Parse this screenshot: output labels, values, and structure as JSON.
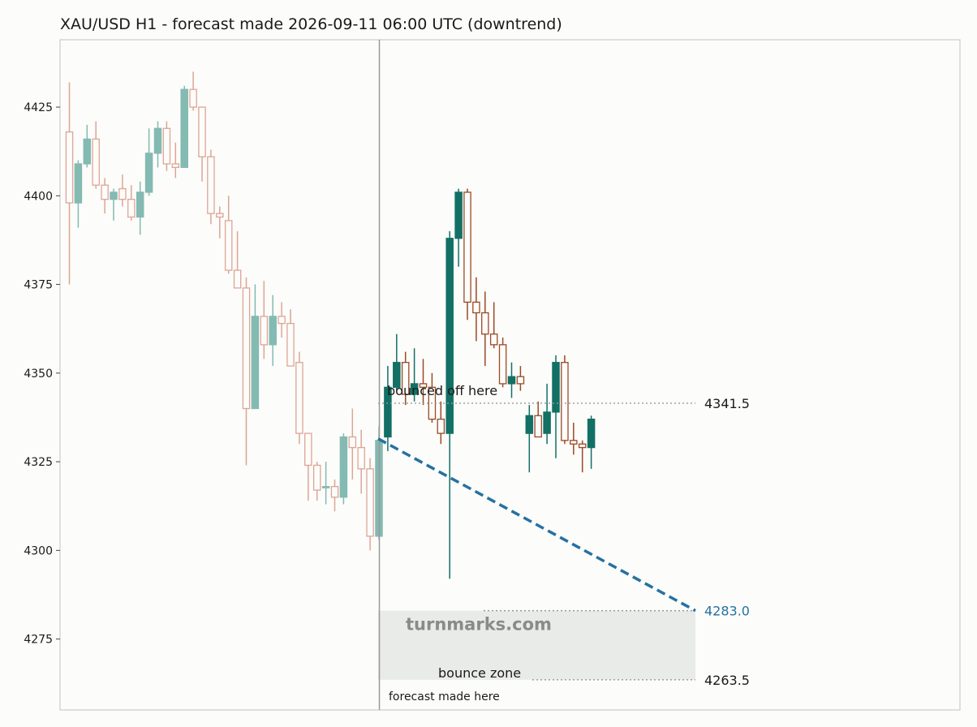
{
  "chart_data": {
    "type": "candlestick",
    "title": "XAU/USD H1 - forecast made 2026-09-11 06:00 UTC (downtrend)",
    "xlabel": "",
    "ylabel": "",
    "ylim": [
      4255,
      4444
    ],
    "yticks": [
      4275,
      4300,
      4325,
      4350,
      4375,
      4400,
      4425
    ],
    "grid": false,
    "colors": {
      "up": "#127065",
      "down": "#9a4a26",
      "history_up": "#83bab2",
      "history_down": "#dda596",
      "forecast_line": "#2471a3",
      "zone_fill": "#e9ebe8",
      "level_line": "#999999",
      "divider": "#999999"
    },
    "history": [
      {
        "o": 4418,
        "h": 4432,
        "l": 4375,
        "c": 4398
      },
      {
        "o": 4398,
        "h": 4410,
        "l": 4391,
        "c": 4409
      },
      {
        "o": 4409,
        "h": 4420,
        "l": 4408,
        "c": 4416
      },
      {
        "o": 4416,
        "h": 4421,
        "l": 4402,
        "c": 4403
      },
      {
        "o": 4403,
        "h": 4405,
        "l": 4395,
        "c": 4399
      },
      {
        "o": 4399,
        "h": 4402,
        "l": 4393,
        "c": 4401
      },
      {
        "o": 4402,
        "h": 4406,
        "l": 4397,
        "c": 4399
      },
      {
        "o": 4399,
        "h": 4403,
        "l": 4393,
        "c": 4394
      },
      {
        "o": 4394,
        "h": 4404,
        "l": 4389,
        "c": 4401
      },
      {
        "o": 4401,
        "h": 4419,
        "l": 4400,
        "c": 4412
      },
      {
        "o": 4412,
        "h": 4421,
        "l": 4408,
        "c": 4419
      },
      {
        "o": 4419,
        "h": 4421,
        "l": 4407,
        "c": 4409
      },
      {
        "o": 4409,
        "h": 4415,
        "l": 4405,
        "c": 4408
      },
      {
        "o": 4408,
        "h": 4431,
        "l": 4408,
        "c": 4430
      },
      {
        "o": 4430,
        "h": 4435,
        "l": 4424,
        "c": 4425
      },
      {
        "o": 4425,
        "h": 4425,
        "l": 4404,
        "c": 4411
      },
      {
        "o": 4411,
        "h": 4413,
        "l": 4392,
        "c": 4395
      },
      {
        "o": 4395,
        "h": 4397,
        "l": 4388,
        "c": 4394
      },
      {
        "o": 4393,
        "h": 4400,
        "l": 4378,
        "c": 4379
      },
      {
        "o": 4379,
        "h": 4390,
        "l": 4374,
        "c": 4374
      },
      {
        "o": 4374,
        "h": 4377,
        "l": 4324,
        "c": 4340
      },
      {
        "o": 4340,
        "h": 4375,
        "l": 4340,
        "c": 4366
      },
      {
        "o": 4366,
        "h": 4376,
        "l": 4354,
        "c": 4358
      },
      {
        "o": 4358,
        "h": 4372,
        "l": 4352,
        "c": 4366
      },
      {
        "o": 4366,
        "h": 4370,
        "l": 4360,
        "c": 4364
      },
      {
        "o": 4364,
        "h": 4368,
        "l": 4352,
        "c": 4352
      },
      {
        "o": 4353,
        "h": 4356,
        "l": 4330,
        "c": 4333
      },
      {
        "o": 4333,
        "h": 4333,
        "l": 4314,
        "c": 4324
      },
      {
        "o": 4324,
        "h": 4325,
        "l": 4314,
        "c": 4317
      },
      {
        "o": 4318,
        "h": 4325,
        "l": 4313,
        "c": 4318
      },
      {
        "o": 4318,
        "h": 4320,
        "l": 4311,
        "c": 4315
      },
      {
        "o": 4315,
        "h": 4333,
        "l": 4313,
        "c": 4332
      },
      {
        "o": 4332,
        "h": 4340,
        "l": 4320,
        "c": 4329
      },
      {
        "o": 4329,
        "h": 4334,
        "l": 4316,
        "c": 4323
      },
      {
        "o": 4323,
        "h": 4326,
        "l": 4300,
        "c": 4304
      },
      {
        "o": 4304,
        "h": 4335,
        "l": 4303,
        "c": 4331
      }
    ],
    "actual": [
      {
        "o": 4332,
        "h": 4352,
        "l": 4328,
        "c": 4346
      },
      {
        "o": 4346,
        "h": 4361,
        "l": 4345,
        "c": 4353
      },
      {
        "o": 4353,
        "h": 4356,
        "l": 4341,
        "c": 4344
      },
      {
        "o": 4344,
        "h": 4357,
        "l": 4342,
        "c": 4347
      },
      {
        "o": 4347,
        "h": 4354,
        "l": 4341,
        "c": 4346
      },
      {
        "o": 4346,
        "h": 4350,
        "l": 4336,
        "c": 4337
      },
      {
        "o": 4337,
        "h": 4342,
        "l": 4330,
        "c": 4333
      },
      {
        "o": 4333,
        "h": 4390,
        "l": 4292,
        "c": 4388
      },
      {
        "o": 4388,
        "h": 4402,
        "l": 4380,
        "c": 4401
      },
      {
        "o": 4401,
        "h": 4402,
        "l": 4365,
        "c": 4370
      },
      {
        "o": 4370,
        "h": 4377,
        "l": 4359,
        "c": 4367
      },
      {
        "o": 4367,
        "h": 4373,
        "l": 4352,
        "c": 4361
      },
      {
        "o": 4361,
        "h": 4370,
        "l": 4357,
        "c": 4358
      },
      {
        "o": 4358,
        "h": 4360,
        "l": 4346,
        "c": 4347
      },
      {
        "o": 4347,
        "h": 4353,
        "l": 4343,
        "c": 4349
      },
      {
        "o": 4349,
        "h": 4352,
        "l": 4345,
        "c": 4347
      },
      {
        "o": 4333,
        "h": 4341,
        "l": 4322,
        "c": 4338
      },
      {
        "o": 4338,
        "h": 4342,
        "l": 4332,
        "c": 4332
      },
      {
        "o": 4333,
        "h": 4347,
        "l": 4330,
        "c": 4339
      },
      {
        "o": 4339,
        "h": 4355,
        "l": 4326,
        "c": 4353
      },
      {
        "o": 4353,
        "h": 4355,
        "l": 4330,
        "c": 4331
      },
      {
        "o": 4331,
        "h": 4336,
        "l": 4327,
        "c": 4330
      },
      {
        "o": 4330,
        "h": 4331,
        "l": 4322,
        "c": 4329
      },
      {
        "o": 4329,
        "h": 4338,
        "l": 4323,
        "c": 4337
      }
    ],
    "forecast_line": {
      "start": 4331.5,
      "end": 4283.0,
      "end_label": "4283.0"
    },
    "levels": [
      {
        "value": 4341.5,
        "label": "4341.5"
      },
      {
        "value": 4283.0,
        "label": "4283.0"
      },
      {
        "value": 4263.5,
        "label": "4263.5"
      }
    ],
    "zone": {
      "low": 4263.5,
      "high": 4283.0
    },
    "annotations": {
      "bounced": "bounced off here",
      "bounce_zone": "bounce zone",
      "forecast_made": "forecast made here",
      "watermark": "turnmarks.com"
    }
  }
}
